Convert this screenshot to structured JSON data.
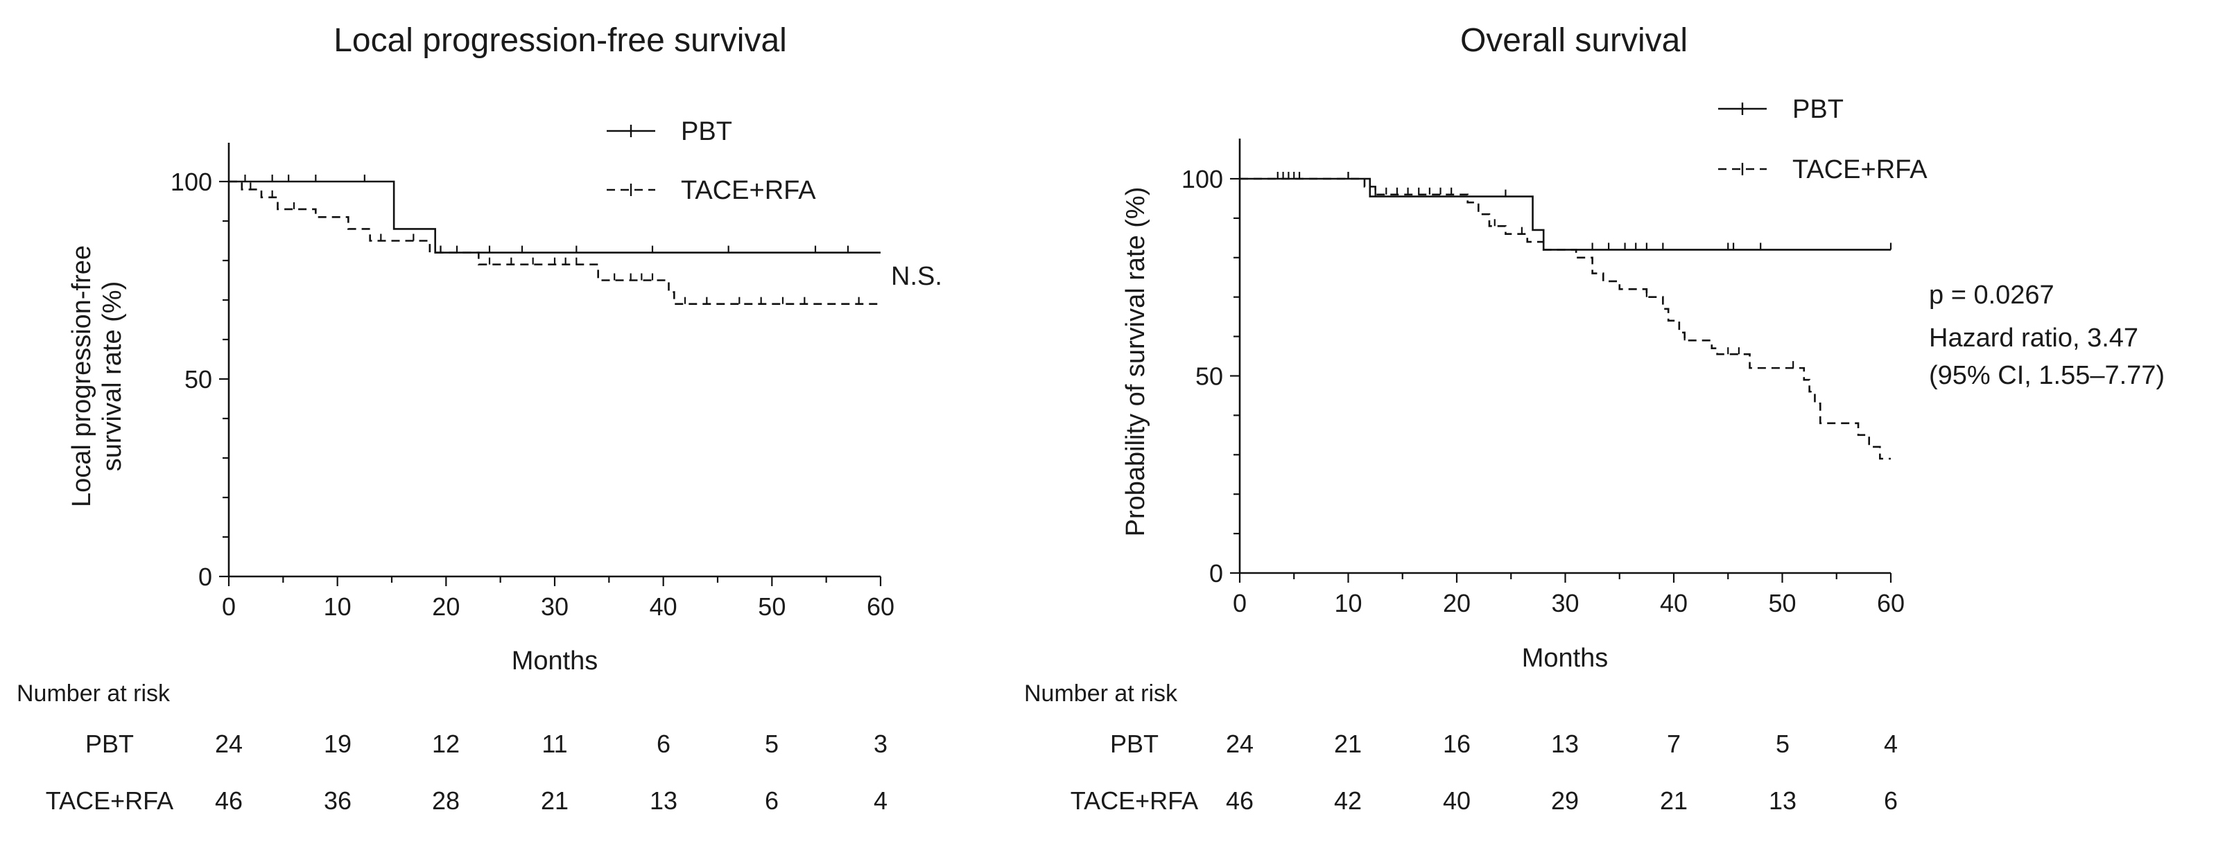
{
  "figure": {
    "x_axis_label": "Months",
    "risk_table_title": "Number at risk"
  },
  "chart_data": [
    {
      "type": "line",
      "subtype": "kaplan-meier",
      "title": "Local progression-free survival",
      "ylabel": "Local progression-free survival rate (%)",
      "ylabel_lines": [
        "Local progression-free",
        "survival rate (%)"
      ],
      "xlabel": "Months",
      "xlim": [
        0,
        60
      ],
      "ylim": [
        0,
        100
      ],
      "x_ticks": [
        0,
        10,
        20,
        30,
        40,
        50,
        60
      ],
      "y_ticks": [
        0,
        50,
        100
      ],
      "legend_position": "top-right",
      "annotations": [
        "N.S."
      ],
      "series": [
        {
          "name": "PBT",
          "style": "solid",
          "steps": [
            [
              0,
              100
            ],
            [
              15.2,
              88
            ],
            [
              19,
              82
            ],
            [
              60,
              82
            ]
          ],
          "censored": [
            1.5,
            4,
            5.5,
            8,
            12.5,
            19.5,
            24,
            27,
            32,
            39,
            46,
            54,
            57
          ]
        },
        {
          "name": "TACE+RFA",
          "style": "dashed",
          "steps": [
            [
              0,
              100
            ],
            [
              1.2,
              98
            ],
            [
              3,
              96
            ],
            [
              4.5,
              93
            ],
            [
              8,
              91
            ],
            [
              11,
              88
            ],
            [
              13,
              85
            ],
            [
              18.5,
              82
            ],
            [
              23,
              79
            ],
            [
              34,
              75
            ],
            [
              40.5,
              72
            ],
            [
              41,
              69
            ],
            [
              60,
              69
            ]
          ],
          "censored": [
            2,
            4,
            6,
            14,
            17,
            19.5,
            21,
            24,
            26,
            28,
            30,
            31,
            32,
            35.5,
            37,
            38,
            39,
            42,
            44,
            47,
            49,
            51,
            53,
            58
          ]
        }
      ],
      "risk_table": {
        "times": [
          0,
          10,
          20,
          30,
          40,
          50,
          60
        ],
        "rows": [
          {
            "label": "PBT",
            "values": [
              24,
              19,
              12,
              11,
              6,
              5,
              3
            ]
          },
          {
            "label": "TACE+RFA",
            "values": [
              46,
              36,
              28,
              21,
              13,
              6,
              4
            ]
          }
        ]
      }
    },
    {
      "type": "line",
      "subtype": "kaplan-meier",
      "title": "Overall survival",
      "ylabel": "Probability of survival rate (%)",
      "ylabel_lines": [
        "Probability of survival rate (%)"
      ],
      "xlabel": "Months",
      "xlim": [
        0,
        60
      ],
      "ylim": [
        0,
        100
      ],
      "x_ticks": [
        0,
        10,
        20,
        30,
        40,
        50,
        60
      ],
      "y_ticks": [
        0,
        50,
        100
      ],
      "legend_position": "top-right",
      "annotations": [
        "p = 0.0267",
        "Hazard ratio, 3.47",
        "(95% CI, 1.55–7.77)"
      ],
      "series": [
        {
          "name": "PBT",
          "style": "solid",
          "steps": [
            [
              0,
              100
            ],
            [
              12,
              95.5
            ],
            [
              27,
              87
            ],
            [
              28,
              82
            ],
            [
              60,
              82
            ]
          ],
          "censored": [
            3.5,
            4,
            4.5,
            5,
            5.5,
            10,
            12.5,
            24.5,
            32.5,
            34,
            35.5,
            36.5,
            37.5,
            39,
            45,
            45.5,
            48,
            60
          ]
        },
        {
          "name": "TACE+RFA",
          "style": "dashed",
          "steps": [
            [
              0,
              100
            ],
            [
              11.5,
              98
            ],
            [
              12.5,
              96
            ],
            [
              21,
              94
            ],
            [
              22,
              91
            ],
            [
              23,
              88
            ],
            [
              24.5,
              86
            ],
            [
              26.5,
              84
            ],
            [
              28,
              82
            ],
            [
              31,
              80
            ],
            [
              32.5,
              76
            ],
            [
              33.5,
              74
            ],
            [
              35,
              72
            ],
            [
              37.5,
              70
            ],
            [
              39,
              67
            ],
            [
              39.5,
              64
            ],
            [
              40.5,
              61
            ],
            [
              41,
              59
            ],
            [
              43.5,
              57
            ],
            [
              44,
              55.5
            ],
            [
              47,
              52
            ],
            [
              52,
              49
            ],
            [
              52.5,
              46
            ],
            [
              53,
              43
            ],
            [
              53.5,
              38
            ],
            [
              57,
              35
            ],
            [
              58,
              32
            ],
            [
              59,
              29
            ],
            [
              60,
              29
            ]
          ],
          "censored": [
            10,
            12.5,
            13.5,
            14.5,
            15.5,
            16.5,
            17.5,
            18.5,
            19.5,
            23.5,
            26,
            37.5,
            41,
            45,
            46,
            51
          ]
        }
      ],
      "risk_table": {
        "times": [
          0,
          10,
          20,
          30,
          40,
          50,
          60
        ],
        "rows": [
          {
            "label": "PBT",
            "values": [
              24,
              21,
              16,
              13,
              7,
              5,
              4
            ]
          },
          {
            "label": "TACE+RFA",
            "values": [
              46,
              42,
              40,
              29,
              21,
              13,
              6
            ]
          }
        ]
      }
    }
  ]
}
